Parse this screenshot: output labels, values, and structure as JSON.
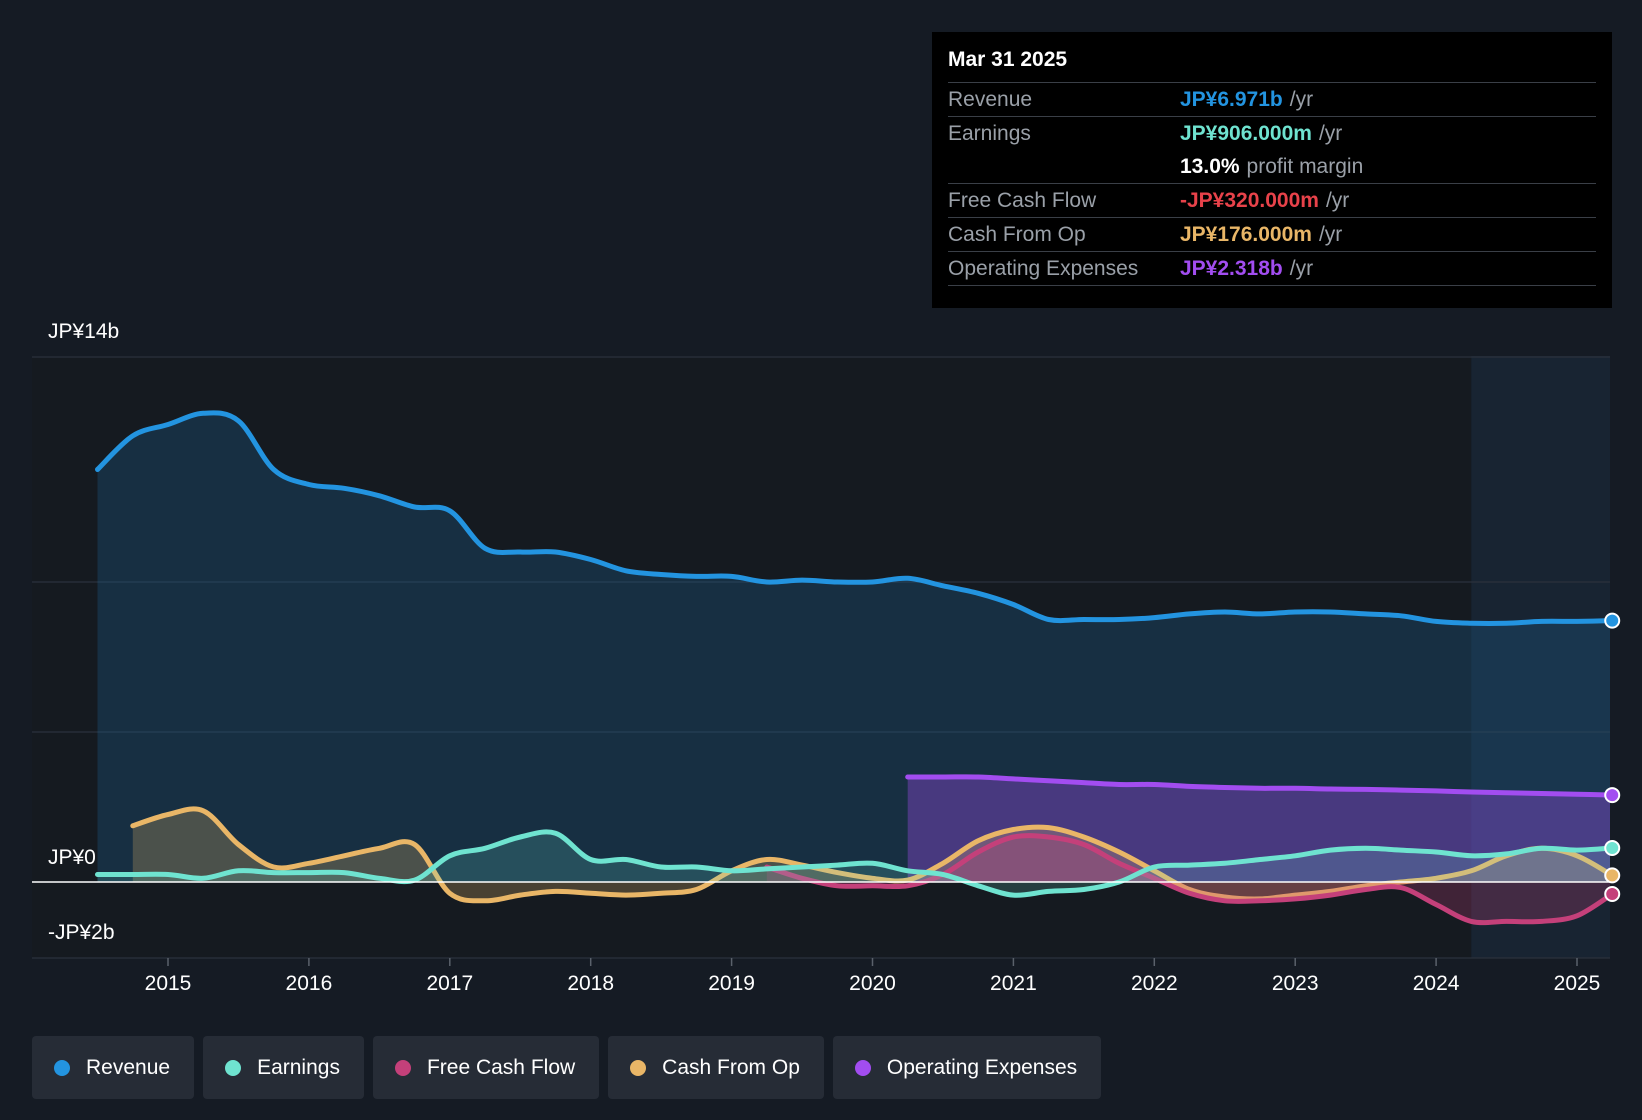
{
  "tooltip": {
    "date": "Mar 31 2025",
    "rows": [
      {
        "label": "Revenue",
        "value": "JP¥6.971b",
        "unit": "/yr",
        "color": "#2394e0"
      },
      {
        "label": "Earnings",
        "value": "JP¥906.000m",
        "unit": "/yr",
        "color": "#6fe3d0"
      },
      {
        "label": "",
        "value": "13.0%",
        "unit": "profit margin",
        "color": "#ffffff"
      },
      {
        "label": "Free Cash Flow",
        "value": "-JP¥320.000m",
        "unit": "/yr",
        "color": "#e8424a"
      },
      {
        "label": "Cash From Op",
        "value": "JP¥176.000m",
        "unit": "/yr",
        "color": "#e9b667"
      },
      {
        "label": "Operating Expenses",
        "value": "JP¥2.318b",
        "unit": "/yr",
        "color": "#a24df0"
      }
    ]
  },
  "axis": {
    "y_top_label": "JP¥14b",
    "y_zero_label": "JP¥0",
    "y_bottom_label": "-JP¥2b"
  },
  "legend": [
    {
      "label": "Revenue",
      "color": "#2394e0"
    },
    {
      "label": "Earnings",
      "color": "#6fe3d0"
    },
    {
      "label": "Free Cash Flow",
      "color": "#c4407a"
    },
    {
      "label": "Cash From Op",
      "color": "#e9b667"
    },
    {
      "label": "Operating Expenses",
      "color": "#a24df0"
    }
  ],
  "chart_data": {
    "type": "area",
    "title": "",
    "xlabel": "",
    "ylabel": "",
    "x_ticks": [
      "2015",
      "2016",
      "2017",
      "2018",
      "2019",
      "2020",
      "2021",
      "2022",
      "2023",
      "2024",
      "2025"
    ],
    "x_range": [
      2014.5,
      2025.25
    ],
    "ylim": [
      -2,
      14
    ],
    "y_unit": "JP¥ billions",
    "forecast_start": 2024.25,
    "series": [
      {
        "name": "Revenue",
        "color": "#2394e0",
        "x": [
          2014.5,
          2014.75,
          2015.0,
          2015.25,
          2015.5,
          2015.75,
          2016.0,
          2016.25,
          2016.5,
          2016.75,
          2017.0,
          2017.25,
          2017.5,
          2017.75,
          2018.0,
          2018.25,
          2018.5,
          2018.75,
          2019.0,
          2019.25,
          2019.5,
          2019.75,
          2020.0,
          2020.25,
          2020.5,
          2020.75,
          2021.0,
          2021.25,
          2021.5,
          2021.75,
          2022.0,
          2022.25,
          2022.5,
          2022.75,
          2023.0,
          2023.25,
          2023.5,
          2023.75,
          2024.0,
          2024.25,
          2024.5,
          2024.75,
          2025.0,
          2025.25
        ],
        "values": [
          11.0,
          11.9,
          12.2,
          12.5,
          12.3,
          11.0,
          10.6,
          10.5,
          10.3,
          10.0,
          9.9,
          8.9,
          8.8,
          8.8,
          8.6,
          8.3,
          8.2,
          8.15,
          8.15,
          8.0,
          8.05,
          8.0,
          8.0,
          8.1,
          7.9,
          7.7,
          7.4,
          7.0,
          7.0,
          7.0,
          7.05,
          7.15,
          7.2,
          7.15,
          7.2,
          7.2,
          7.15,
          7.1,
          6.95,
          6.9,
          6.9,
          6.95,
          6.95,
          6.97
        ]
      },
      {
        "name": "Earnings",
        "color": "#6fe3d0",
        "x": [
          2014.5,
          2014.75,
          2015.0,
          2015.25,
          2015.5,
          2015.75,
          2016.0,
          2016.25,
          2016.5,
          2016.75,
          2017.0,
          2017.25,
          2017.5,
          2017.75,
          2018.0,
          2018.25,
          2018.5,
          2018.75,
          2019.0,
          2019.25,
          2019.5,
          2019.75,
          2020.0,
          2020.25,
          2020.5,
          2020.75,
          2021.0,
          2021.25,
          2021.5,
          2021.75,
          2022.0,
          2022.25,
          2022.5,
          2022.75,
          2023.0,
          2023.25,
          2023.5,
          2023.75,
          2024.0,
          2024.25,
          2024.5,
          2024.75,
          2025.0,
          2025.25
        ],
        "values": [
          0.2,
          0.2,
          0.2,
          0.1,
          0.3,
          0.25,
          0.25,
          0.25,
          0.1,
          0.05,
          0.7,
          0.9,
          1.2,
          1.3,
          0.6,
          0.6,
          0.4,
          0.4,
          0.3,
          0.35,
          0.4,
          0.45,
          0.5,
          0.3,
          0.2,
          -0.1,
          -0.35,
          -0.25,
          -0.2,
          0.0,
          0.4,
          0.45,
          0.5,
          0.6,
          0.7,
          0.85,
          0.9,
          0.85,
          0.8,
          0.7,
          0.75,
          0.9,
          0.85,
          0.906
        ]
      },
      {
        "name": "Free Cash Flow",
        "color": "#c4407a",
        "x": [
          2019.25,
          2019.5,
          2019.75,
          2020.0,
          2020.25,
          2020.5,
          2020.75,
          2021.0,
          2021.25,
          2021.5,
          2021.75,
          2022.0,
          2022.25,
          2022.5,
          2022.75,
          2023.0,
          2023.25,
          2023.5,
          2023.75,
          2024.0,
          2024.25,
          2024.5,
          2024.75,
          2025.0,
          2025.25
        ],
        "values": [
          0.4,
          0.1,
          -0.1,
          -0.1,
          -0.1,
          0.2,
          0.8,
          1.2,
          1.2,
          1.0,
          0.5,
          0.1,
          -0.3,
          -0.5,
          -0.5,
          -0.45,
          -0.35,
          -0.2,
          -0.15,
          -0.6,
          -1.05,
          -1.05,
          -1.05,
          -0.9,
          -0.32
        ]
      },
      {
        "name": "Cash From Op",
        "color": "#e9b667",
        "x": [
          2014.75,
          2015.0,
          2015.25,
          2015.5,
          2015.75,
          2016.0,
          2016.25,
          2016.5,
          2016.75,
          2017.0,
          2017.25,
          2017.5,
          2017.75,
          2018.0,
          2018.25,
          2018.5,
          2018.75,
          2019.0,
          2019.25,
          2019.5,
          2019.75,
          2020.0,
          2020.25,
          2020.5,
          2020.75,
          2021.0,
          2021.25,
          2021.5,
          2021.75,
          2022.0,
          2022.25,
          2022.5,
          2022.75,
          2023.0,
          2023.25,
          2023.5,
          2023.75,
          2024.0,
          2024.25,
          2024.5,
          2024.75,
          2025.0,
          2025.25
        ],
        "values": [
          1.5,
          1.8,
          1.9,
          1.0,
          0.4,
          0.5,
          0.7,
          0.9,
          1.0,
          -0.3,
          -0.5,
          -0.35,
          -0.25,
          -0.3,
          -0.35,
          -0.3,
          -0.2,
          0.3,
          0.6,
          0.45,
          0.25,
          0.1,
          0.05,
          0.5,
          1.1,
          1.4,
          1.45,
          1.2,
          0.8,
          0.3,
          -0.2,
          -0.4,
          -0.45,
          -0.35,
          -0.25,
          -0.1,
          0.0,
          0.1,
          0.3,
          0.7,
          0.9,
          0.7,
          0.176
        ]
      },
      {
        "name": "Operating Expenses",
        "color": "#a24df0",
        "x": [
          2020.25,
          2020.5,
          2020.75,
          2021.0,
          2021.25,
          2021.5,
          2021.75,
          2022.0,
          2022.25,
          2022.5,
          2022.75,
          2023.0,
          2023.25,
          2023.5,
          2023.75,
          2024.0,
          2024.25,
          2024.5,
          2024.75,
          2025.0,
          2025.25
        ],
        "values": [
          2.8,
          2.8,
          2.8,
          2.75,
          2.7,
          2.65,
          2.6,
          2.6,
          2.55,
          2.52,
          2.5,
          2.5,
          2.48,
          2.47,
          2.45,
          2.43,
          2.4,
          2.38,
          2.36,
          2.34,
          2.318
        ]
      }
    ]
  }
}
